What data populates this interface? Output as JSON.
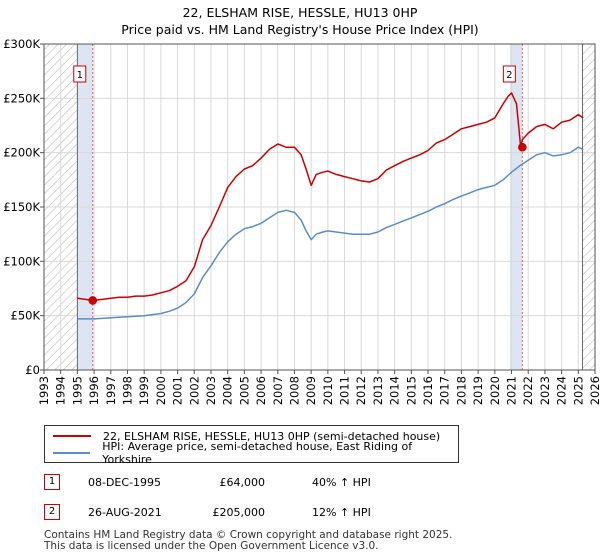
{
  "title": "22, ELSHAM RISE, HESSLE, HU13 0HP",
  "subtitle": "Price paid vs. HM Land Registry's House Price Index (HPI)",
  "chart_data": {
    "type": "line",
    "title": "22, ELSHAM RISE, HESSLE, HU13 0HP",
    "subtitle": "Price paid vs. HM Land Registry's House Price Index (HPI)",
    "xlabel": "",
    "ylabel": "",
    "xlim": [
      1993,
      2026
    ],
    "ylim": [
      0,
      300000
    ],
    "y_ticks": [
      0,
      50000,
      100000,
      150000,
      200000,
      250000,
      300000
    ],
    "y_tick_labels": [
      "£0",
      "£50K",
      "£100K",
      "£150K",
      "£200K",
      "£250K",
      "£300K"
    ],
    "x_ticks": [
      "1993",
      "1994",
      "1995",
      "1996",
      "1997",
      "1998",
      "1999",
      "2000",
      "2001",
      "2002",
      "2003",
      "2004",
      "2005",
      "2006",
      "2007",
      "2008",
      "2009",
      "2010",
      "2011",
      "2012",
      "2013",
      "2014",
      "2015",
      "2016",
      "2017",
      "2018",
      "2019",
      "2020",
      "2021",
      "2022",
      "2023",
      "2024",
      "2025",
      "2026"
    ],
    "grid": true,
    "hatched_ranges": [
      [
        1993,
        1995.0
      ],
      [
        2025.25,
        2026
      ]
    ],
    "shaded_ranges": [
      [
        1995.0,
        1995.92
      ],
      [
        2020.9,
        2021.65
      ]
    ],
    "series": [
      {
        "name": "22, ELSHAM RISE, HESSLE, HU13 0HP (semi-detached house)",
        "color": "#cc0000",
        "x": [
          1995.0,
          1995.5,
          1995.92,
          1996.5,
          1997.0,
          1997.5,
          1998.0,
          1998.5,
          1999.0,
          1999.5,
          2000.0,
          2000.5,
          2001.0,
          2001.5,
          2002.0,
          2002.5,
          2003.0,
          2003.5,
          2004.0,
          2004.5,
          2005.0,
          2005.5,
          2006.0,
          2006.5,
          2007.0,
          2007.5,
          2008.0,
          2008.4,
          2008.7,
          2009.0,
          2009.3,
          2009.7,
          2010.0,
          2010.5,
          2011.0,
          2011.5,
          2012.0,
          2012.5,
          2013.0,
          2013.5,
          2014.0,
          2014.5,
          2015.0,
          2015.5,
          2016.0,
          2016.5,
          2017.0,
          2017.5,
          2018.0,
          2018.5,
          2019.0,
          2019.5,
          2020.0,
          2020.5,
          2020.8,
          2021.0,
          2021.3,
          2021.55,
          2021.65,
          2022.0,
          2022.5,
          2023.0,
          2023.5,
          2024.0,
          2024.5,
          2025.0,
          2025.3
        ],
        "y": [
          66000,
          65000,
          64000,
          65000,
          66000,
          67000,
          67000,
          68000,
          68000,
          69000,
          71000,
          73000,
          77000,
          82000,
          95000,
          120000,
          133000,
          150000,
          168000,
          178000,
          185000,
          188000,
          195000,
          203000,
          208000,
          205000,
          205000,
          198000,
          185000,
          170000,
          180000,
          182000,
          183000,
          180000,
          178000,
          176000,
          174000,
          173000,
          176000,
          184000,
          188000,
          192000,
          195000,
          198000,
          202000,
          209000,
          212000,
          217000,
          222000,
          224000,
          226000,
          228000,
          232000,
          245000,
          252000,
          255000,
          245000,
          205000,
          212000,
          218000,
          224000,
          226000,
          222000,
          228000,
          230000,
          235000,
          232000
        ]
      },
      {
        "name": "HPI: Average price, semi-detached house, East Riding of Yorkshire",
        "color": "#5b8ccc",
        "x": [
          1995.0,
          1995.5,
          1996.0,
          1996.5,
          1997.0,
          1997.5,
          1998.0,
          1998.5,
          1999.0,
          1999.5,
          2000.0,
          2000.5,
          2001.0,
          2001.5,
          2002.0,
          2002.5,
          2003.0,
          2003.5,
          2004.0,
          2004.5,
          2005.0,
          2005.5,
          2006.0,
          2006.5,
          2007.0,
          2007.5,
          2008.0,
          2008.4,
          2008.7,
          2009.0,
          2009.3,
          2009.7,
          2010.0,
          2010.5,
          2011.0,
          2011.5,
          2012.0,
          2012.5,
          2013.0,
          2013.5,
          2014.0,
          2014.5,
          2015.0,
          2015.5,
          2016.0,
          2016.5,
          2017.0,
          2017.5,
          2018.0,
          2018.5,
          2019.0,
          2019.5,
          2020.0,
          2020.5,
          2021.0,
          2021.5,
          2022.0,
          2022.5,
          2023.0,
          2023.5,
          2024.0,
          2024.5,
          2025.0,
          2025.3
        ],
        "y": [
          47000,
          47000,
          47000,
          47500,
          48000,
          48500,
          49000,
          49500,
          50000,
          51000,
          52000,
          54000,
          57000,
          62000,
          70000,
          85000,
          96000,
          108000,
          118000,
          125000,
          130000,
          132000,
          135000,
          140000,
          145000,
          147000,
          145000,
          138000,
          128000,
          120000,
          125000,
          127000,
          128000,
          127000,
          126000,
          125000,
          125000,
          125000,
          127000,
          131000,
          134000,
          137000,
          140000,
          143000,
          146000,
          150000,
          153000,
          157000,
          160000,
          163000,
          166000,
          168000,
          170000,
          175000,
          182000,
          188000,
          193000,
          198000,
          200000,
          197000,
          198000,
          200000,
          205000,
          203000
        ]
      }
    ],
    "annotations": [
      {
        "label": "1",
        "x": 1995.92,
        "y": 64000
      },
      {
        "label": "2",
        "x": 2021.65,
        "y": 205000
      }
    ]
  },
  "legend": {
    "items": [
      {
        "label": "22, ELSHAM RISE, HESSLE, HU13 0HP (semi-detached house)",
        "color": "#cc0000"
      },
      {
        "label": "HPI: Average price, semi-detached house, East Riding of Yorkshire",
        "color": "#5b8ccc"
      }
    ]
  },
  "sales": [
    {
      "num": "1",
      "date": "08-DEC-1995",
      "price": "£64,000",
      "hpi": "40% ↑ HPI"
    },
    {
      "num": "2",
      "date": "26-AUG-2021",
      "price": "£205,000",
      "hpi": "12% ↑ HPI"
    }
  ],
  "footer": {
    "line1": "Contains HM Land Registry data © Crown copyright and database right 2025.",
    "line2": "This data is licensed under the Open Government Licence v3.0."
  }
}
